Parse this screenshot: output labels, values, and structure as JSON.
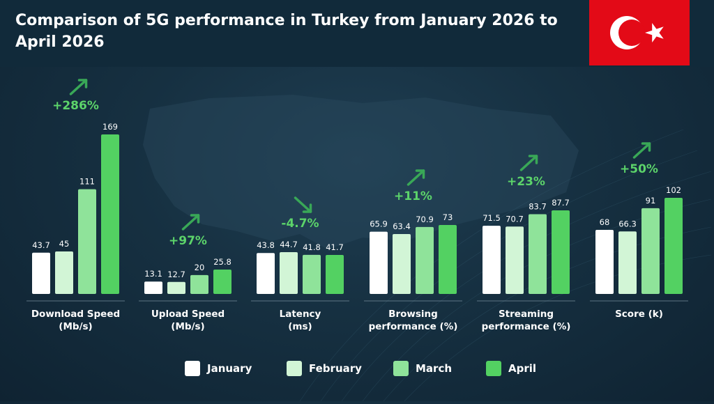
{
  "title": "Comparison of 5G performance in Turkey from January 2026 to April 2026",
  "flag_icon": "turkey-flag-icon",
  "colors": {
    "January": "#ffffff",
    "February": "#d2f5d6",
    "March": "#8fe39a",
    "April": "#53d162",
    "change_text": "#5cd46a",
    "arrow": "#39a857"
  },
  "legend": [
    "January",
    "February",
    "March",
    "April"
  ],
  "chart_data": {
    "type": "bar",
    "title": "Comparison of 5G performance in Turkey from January 2026 to April 2026",
    "series_names": [
      "January",
      "February",
      "March",
      "April"
    ],
    "grid": false,
    "legend_position": "bottom",
    "groups": [
      {
        "label": [
          "Download Speed",
          "(Mb/s)"
        ],
        "values": [
          43.7,
          45,
          111,
          169
        ],
        "value_labels": [
          "43.7",
          "45",
          "111",
          "169"
        ],
        "change": "+286%",
        "direction": "up"
      },
      {
        "label": [
          "Upload Speed",
          "(Mb/s)"
        ],
        "values": [
          13.1,
          12.7,
          20,
          25.8
        ],
        "value_labels": [
          "13.1",
          "12.7",
          "20",
          "25.8"
        ],
        "change": "+97%",
        "direction": "up"
      },
      {
        "label": [
          "Latency",
          "(ms)"
        ],
        "values": [
          43.8,
          44.7,
          41.8,
          41.7
        ],
        "value_labels": [
          "43.8",
          "44.7",
          "41.8",
          "41.7"
        ],
        "change": "-4.7%",
        "direction": "down"
      },
      {
        "label": [
          "Browsing",
          "performance (%)"
        ],
        "values": [
          65.9,
          63.4,
          70.9,
          73
        ],
        "value_labels": [
          "65.9",
          "63.4",
          "70.9",
          "73"
        ],
        "change": "+11%",
        "direction": "up"
      },
      {
        "label": [
          "Streaming",
          "performance (%)"
        ],
        "values": [
          71.5,
          70.7,
          83.7,
          87.7
        ],
        "value_labels": [
          "71.5",
          "70.7",
          "83.7",
          "87.7"
        ],
        "change": "+23%",
        "direction": "up"
      },
      {
        "label": [
          "Score (k)"
        ],
        "values": [
          68,
          66.3,
          91,
          102
        ],
        "value_labels": [
          "68",
          "66.3",
          "91",
          "102"
        ],
        "change": "+50%",
        "direction": "up"
      }
    ]
  }
}
